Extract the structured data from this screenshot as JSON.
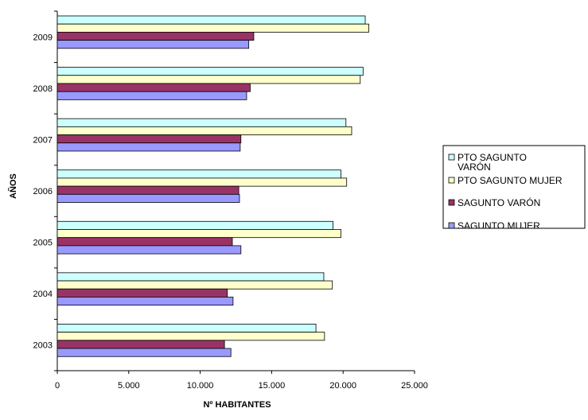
{
  "chart_data": {
    "type": "bar",
    "orientation": "horizontal",
    "categories": [
      "2003",
      "2004",
      "2005",
      "2006",
      "2007",
      "2008",
      "2009"
    ],
    "series": [
      {
        "name": "PTO SAGUNTO VARÓN",
        "color": "#CCFFFF",
        "values": [
          18100,
          18650,
          19300,
          19850,
          20200,
          21400,
          21550
        ]
      },
      {
        "name": "PTO SAGUNTO MUJER",
        "color": "#FFFFCC",
        "values": [
          18700,
          19250,
          19850,
          20250,
          20600,
          21200,
          21800
        ]
      },
      {
        "name": "SAGUNTO VARÓN",
        "color": "#993366",
        "values": [
          11700,
          11900,
          12250,
          12700,
          12850,
          13500,
          13750
        ]
      },
      {
        "name": "SAGUNTO MUJER",
        "color": "#9999FF",
        "values": [
          12150,
          12300,
          12850,
          12750,
          12800,
          13250,
          13400
        ]
      }
    ],
    "title": "",
    "xlabel": "Nº HABITANTES",
    "ylabel": "AÑOS",
    "xlim": [
      0,
      25000
    ],
    "x_ticks": [
      0,
      5000,
      10000,
      15000,
      20000,
      25000
    ],
    "x_tick_labels": [
      "0",
      "5.000",
      "10.000",
      "15.000",
      "20.000",
      "25.000"
    ],
    "grid": false,
    "legend_position": "right"
  }
}
